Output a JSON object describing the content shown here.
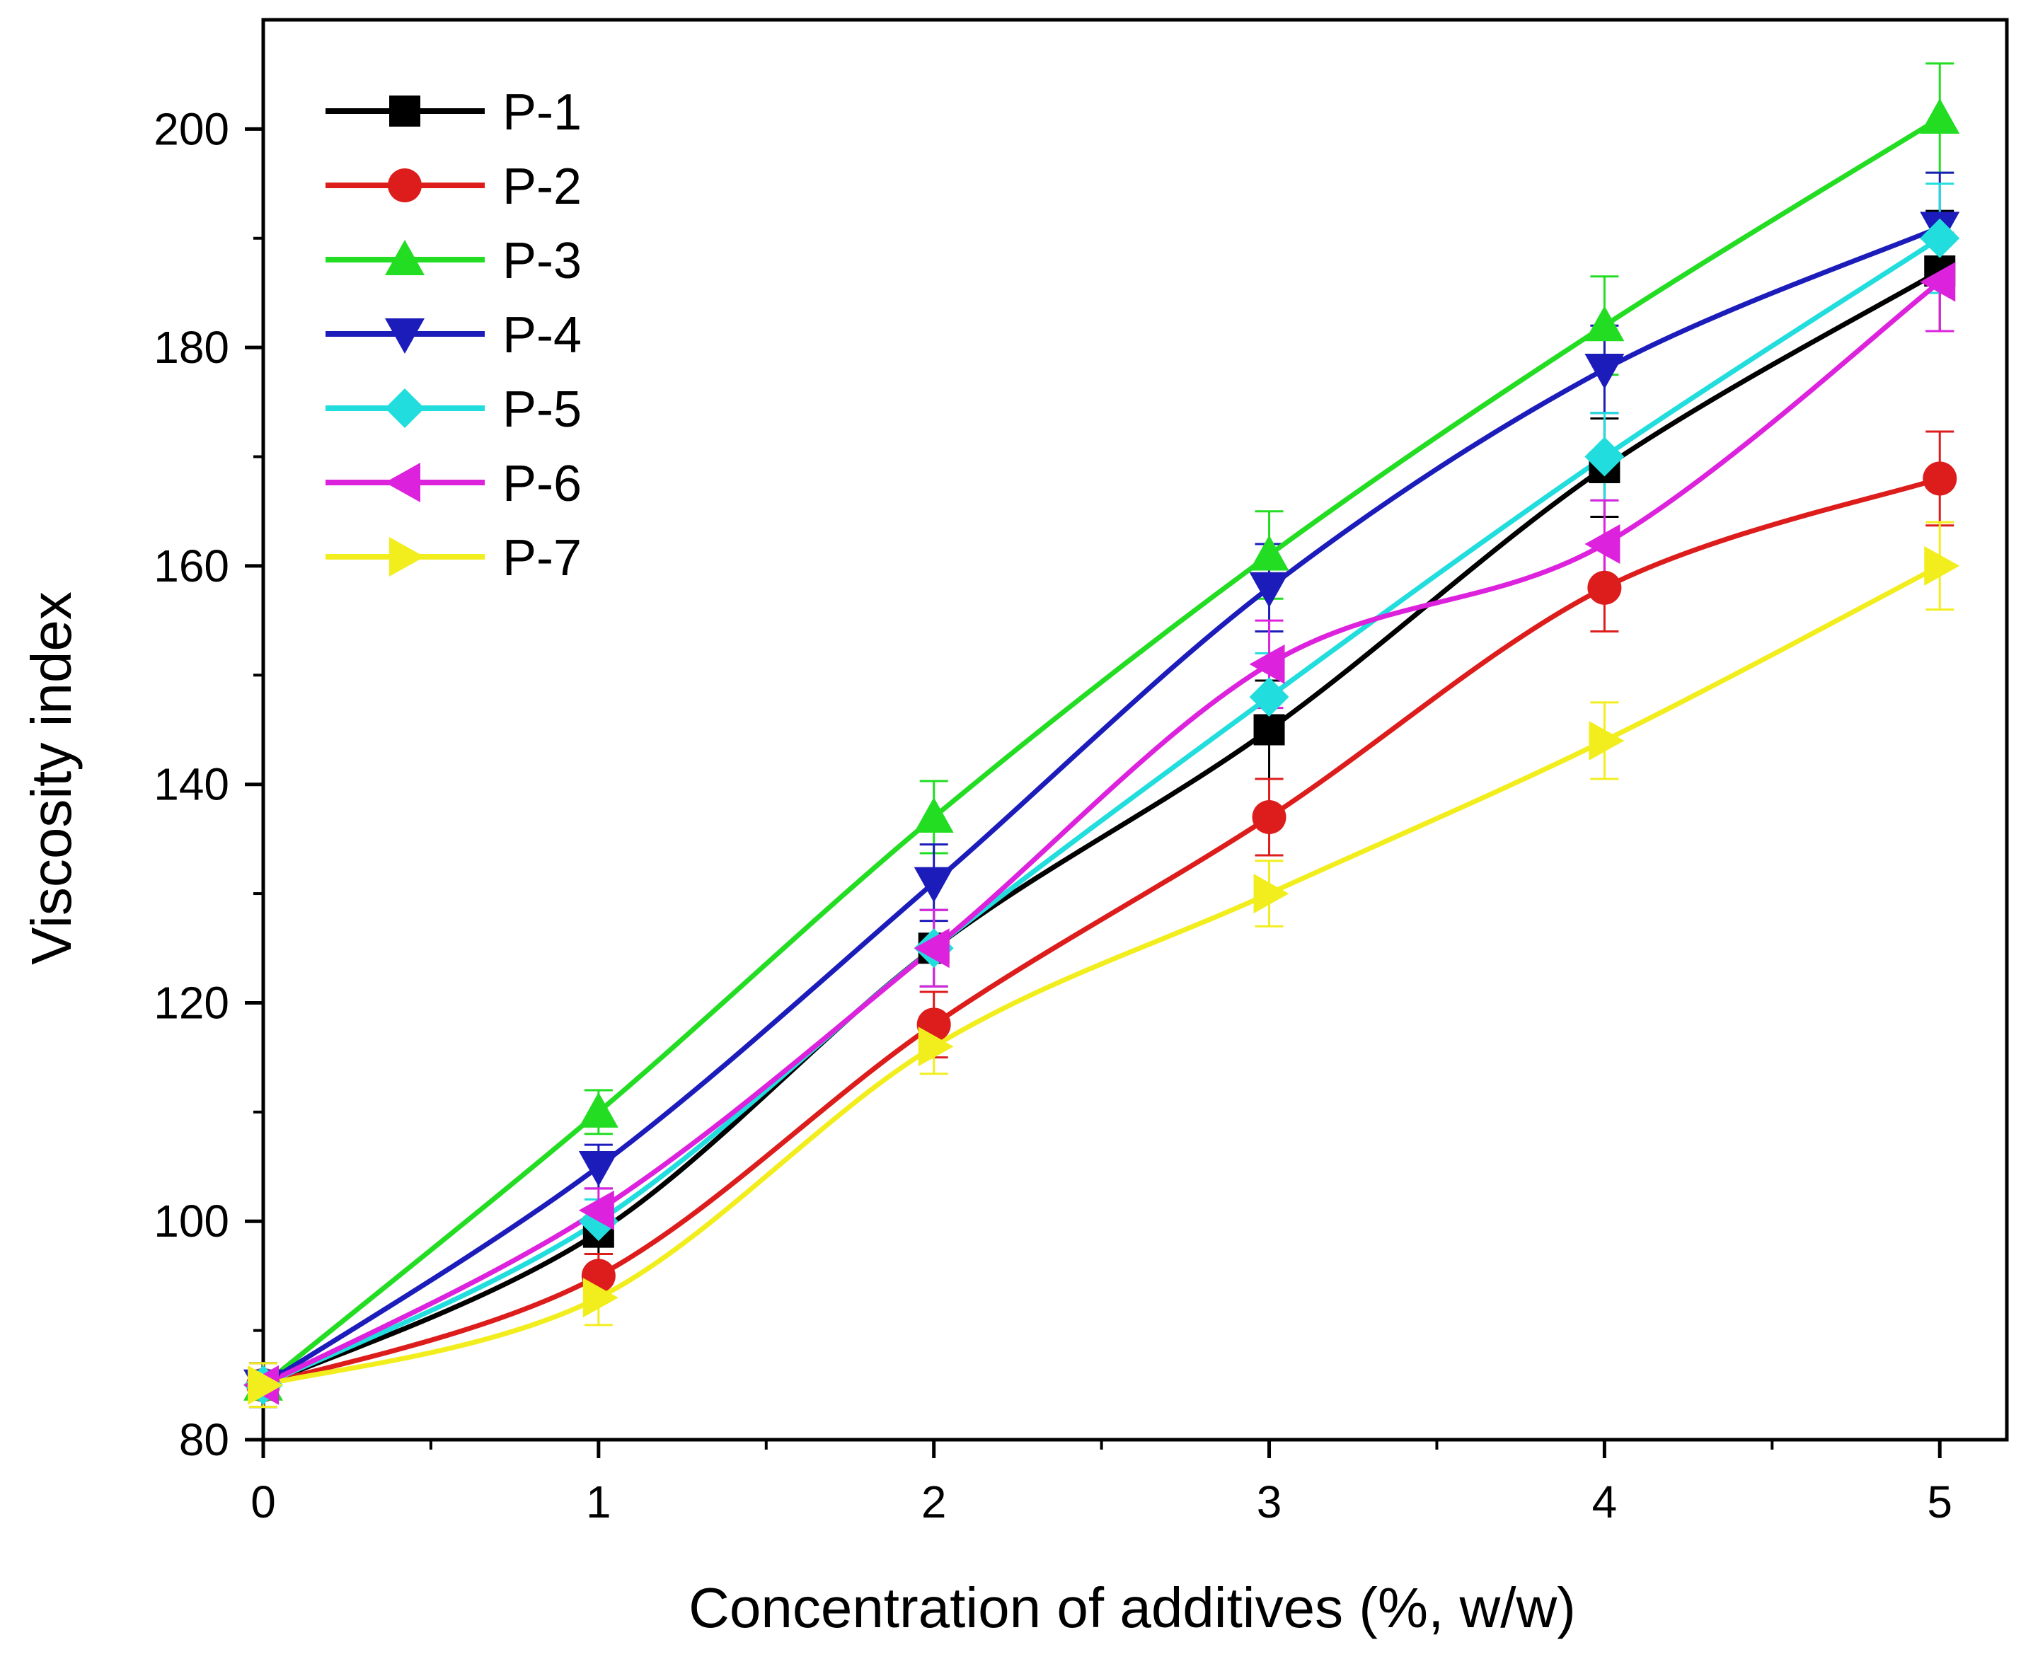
{
  "chart_data": {
    "type": "line",
    "title": "",
    "xlabel": "Concentration of additives (%, w/w)",
    "ylabel": "Viscosity index",
    "xlim": [
      0,
      5.2
    ],
    "ylim": [
      80,
      210
    ],
    "x_ticks": [
      0,
      1,
      2,
      3,
      4,
      5
    ],
    "x_tick_labels": [
      "0",
      "1",
      "2",
      "3",
      "4",
      "5"
    ],
    "x_minor_ticks": [
      0.5,
      1.5,
      2.5,
      3.5,
      4.5
    ],
    "y_ticks": [
      80,
      100,
      120,
      140,
      160,
      180,
      200
    ],
    "y_tick_labels": [
      "80",
      "100",
      "120",
      "140",
      "160",
      "180",
      "200"
    ],
    "y_minor_ticks": [
      90,
      110,
      130,
      150,
      170,
      190
    ],
    "legend_position": "top-left",
    "grid": false,
    "x": [
      0,
      1,
      2,
      3,
      4,
      5
    ],
    "series": [
      {
        "name": "P-1",
        "color": "#000000",
        "marker": "square",
        "values": [
          85,
          99,
          125,
          145,
          169,
          187
        ],
        "errors": [
          2,
          2,
          3.5,
          4.5,
          4.5,
          5.5
        ]
      },
      {
        "name": "P-2",
        "color": "#dd1c1c",
        "marker": "circle",
        "values": [
          85,
          95,
          118,
          137,
          158,
          168
        ],
        "errors": [
          2,
          2,
          3,
          3.5,
          4,
          4.3
        ]
      },
      {
        "name": "P-3",
        "color": "#22dd22",
        "marker": "triangle-up",
        "values": [
          85,
          110,
          137,
          161,
          182,
          201
        ],
        "errors": [
          2,
          2,
          3.3,
          4,
          4.5,
          5
        ]
      },
      {
        "name": "P-4",
        "color": "#1c1cbb",
        "marker": "triangle-down",
        "values": [
          85,
          105,
          131,
          158,
          178,
          191
        ],
        "errors": [
          2,
          2,
          3.5,
          4,
          4,
          5
        ]
      },
      {
        "name": "P-5",
        "color": "#22dddd",
        "marker": "diamond",
        "values": [
          85,
          100,
          125,
          148,
          170,
          190
        ],
        "errors": [
          2,
          2,
          3.5,
          4,
          4,
          5
        ]
      },
      {
        "name": "P-6",
        "color": "#dd22dd",
        "marker": "triangle-left",
        "values": [
          85,
          101,
          125,
          151,
          162,
          186
        ],
        "errors": [
          2,
          2,
          3.5,
          4,
          4,
          4.5
        ]
      },
      {
        "name": "P-7",
        "color": "#f2ee1e",
        "marker": "triangle-right",
        "values": [
          85,
          93,
          116,
          130,
          144,
          160
        ],
        "errors": [
          2,
          2.5,
          2.5,
          3,
          3.5,
          4
        ]
      }
    ]
  }
}
